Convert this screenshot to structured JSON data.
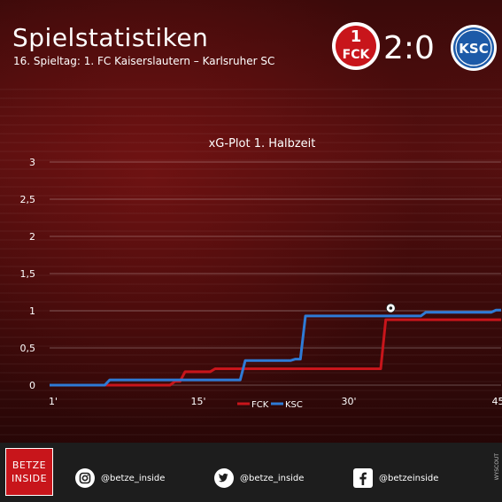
{
  "header": {
    "title": "Spielstatistiken",
    "subtitle": "16. Spieltag: 1. FC Kaiserslautern – Karlsruher SC",
    "score": "2:0",
    "home_logo_text": "FCK",
    "away_logo_text": "KSC"
  },
  "chart_data": {
    "type": "line",
    "title": "xG-Plot 1. Halbzeit",
    "xlabel": "",
    "ylabel": "",
    "xlim": [
      0,
      45
    ],
    "ylim": [
      0,
      3
    ],
    "x_ticks": [
      {
        "value": 0,
        "label": "1'"
      },
      {
        "value": 15,
        "label": "15'"
      },
      {
        "value": 30,
        "label": "30'"
      },
      {
        "value": 45,
        "label": "45'"
      }
    ],
    "y_ticks": [
      {
        "value": 0,
        "label": "0"
      },
      {
        "value": 0.5,
        "label": "0,5"
      },
      {
        "value": 1,
        "label": "1"
      },
      {
        "value": 1.5,
        "label": "1,5"
      },
      {
        "value": 2,
        "label": "2"
      },
      {
        "value": 2.5,
        "label": "2,5"
      },
      {
        "value": 3,
        "label": "3"
      }
    ],
    "grid": true,
    "legend_position": "bottom-center",
    "series": [
      {
        "name": "FCK",
        "color": "#c8151b",
        "points": [
          [
            0,
            0
          ],
          [
            6,
            0
          ],
          [
            12,
            0
          ],
          [
            12.5,
            0.05
          ],
          [
            13,
            0.05
          ],
          [
            13.5,
            0.18
          ],
          [
            16,
            0.18
          ],
          [
            16.5,
            0.22
          ],
          [
            33,
            0.22
          ],
          [
            33.5,
            0.88
          ],
          [
            45,
            0.88
          ]
        ]
      },
      {
        "name": "KSC",
        "color": "#2e7bd6",
        "points": [
          [
            0,
            0
          ],
          [
            5.5,
            0
          ],
          [
            6,
            0.07
          ],
          [
            19,
            0.07
          ],
          [
            19.5,
            0.33
          ],
          [
            24,
            0.33
          ],
          [
            24.5,
            0.35
          ],
          [
            25,
            0.35
          ],
          [
            25.5,
            0.93
          ],
          [
            37,
            0.93
          ],
          [
            37.5,
            0.98
          ],
          [
            44,
            0.98
          ],
          [
            44.5,
            1.01
          ],
          [
            45,
            1.01
          ]
        ]
      }
    ],
    "goal_markers": [
      {
        "series": "KSC",
        "x": 34,
        "y": 1.0,
        "icon": "soccer-ball-icon"
      }
    ]
  },
  "footer": {
    "brand_line1": "BETZE",
    "brand_line2": "INSIDE",
    "instagram": "@betze_inside",
    "twitter": "@betze_inside",
    "facebook": "@betzeinside",
    "side_tag": "WYSCOUT"
  }
}
